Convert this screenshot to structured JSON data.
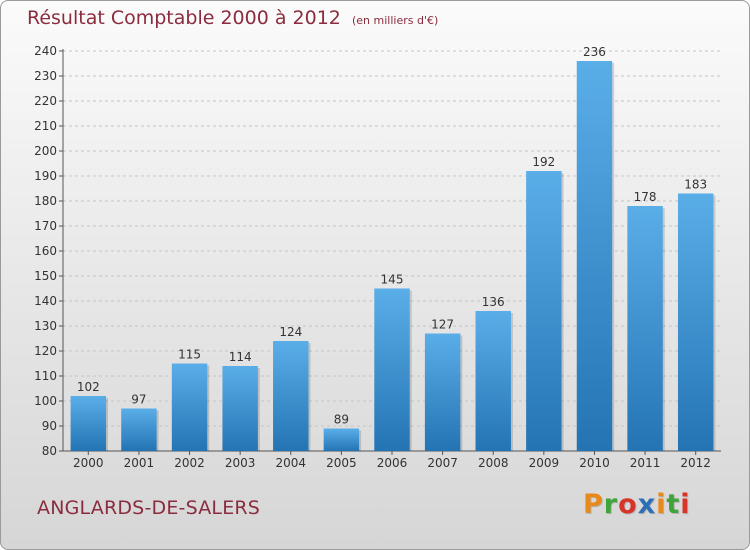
{
  "header": {
    "title": "Résultat Comptable 2000 à 2012",
    "subtitle": "(en milliers d'€)"
  },
  "footer": {
    "commune": "ANGLARDS-DE-SALERS",
    "logo_text": "Proxiti",
    "logo_colors": [
      "#e8891c",
      "#3fa43a",
      "#d7352a",
      "#2b6fb6",
      "#e8891c",
      "#3fa43a",
      "#d7352a"
    ]
  },
  "chart_data": {
    "type": "bar",
    "categories": [
      "2000",
      "2001",
      "2002",
      "2003",
      "2004",
      "2005",
      "2006",
      "2007",
      "2008",
      "2009",
      "2010",
      "2011",
      "2012"
    ],
    "values": [
      102,
      97,
      115,
      114,
      124,
      89,
      145,
      127,
      136,
      192,
      236,
      178,
      183
    ],
    "ylim": [
      80,
      240
    ],
    "ytick_step": 10,
    "grid": true,
    "bar_color_top": "#5aaee8",
    "bar_color_bottom": "#2474b4",
    "title": "Résultat Comptable 2000 à 2012",
    "xlabel": "",
    "ylabel": ""
  }
}
